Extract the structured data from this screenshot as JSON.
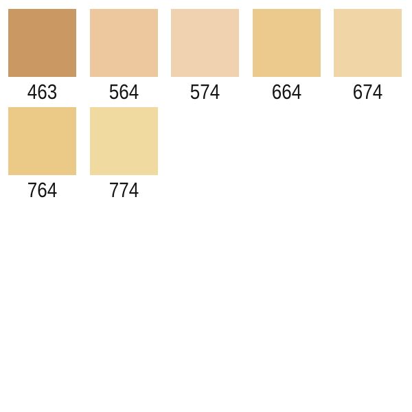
{
  "page": {
    "background_color": "#ffffff"
  },
  "palette": {
    "label_color": "#141414",
    "swatches": [
      {
        "code": "463",
        "color": "#CA9963"
      },
      {
        "code": "564",
        "color": "#EDC89E"
      },
      {
        "code": "574",
        "color": "#F0D2B0"
      },
      {
        "code": "664",
        "color": "#ECC98D"
      },
      {
        "code": "674",
        "color": "#F0D5A6"
      },
      {
        "code": "764",
        "color": "#EBC986"
      },
      {
        "code": "774",
        "color": "#F0DA9F"
      }
    ]
  }
}
